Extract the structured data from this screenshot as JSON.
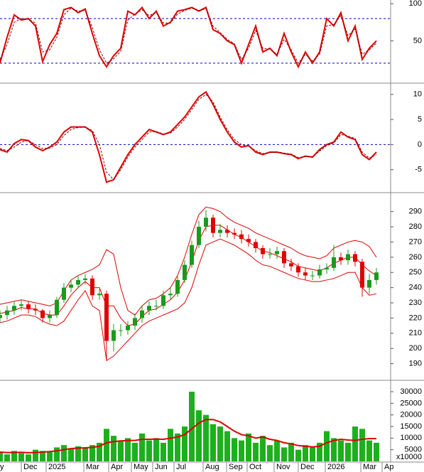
{
  "chart_data": [
    {
      "type": "line",
      "ylim": [
        -6,
        105
      ],
      "yticks": [
        50,
        100
      ],
      "hlines": [
        80,
        20
      ],
      "series": [
        {
          "color": "#e00000",
          "width": 2,
          "dash": false,
          "values": [
            20,
            55,
            85,
            78,
            80,
            70,
            22,
            45,
            60,
            92,
            95,
            88,
            93,
            60,
            30,
            15,
            30,
            40,
            90,
            85,
            95,
            80,
            90,
            70,
            75,
            90,
            92,
            95,
            90,
            95,
            65,
            60,
            50,
            45,
            20,
            45,
            70,
            35,
            40,
            30,
            60,
            35,
            15,
            35,
            20,
            35,
            80,
            70,
            88,
            50,
            70,
            25,
            40,
            50
          ]
        },
        {
          "color": "#800000",
          "width": 1,
          "dash": true,
          "values": [
            25,
            45,
            75,
            80,
            79,
            74,
            35,
            38,
            55,
            85,
            94,
            90,
            91,
            68,
            38,
            20,
            26,
            36,
            78,
            86,
            92,
            84,
            88,
            74,
            74,
            86,
            91,
            94,
            91,
            93,
            70,
            61,
            52,
            46,
            25,
            40,
            64,
            40,
            39,
            32,
            52,
            38,
            20,
            32,
            23,
            32,
            70,
            72,
            84,
            57,
            66,
            32,
            38,
            47
          ]
        }
      ]
    },
    {
      "type": "line",
      "ylim": [
        -9.3,
        12.1
      ],
      "yticks": [
        -5,
        0,
        5,
        10
      ],
      "hlines": [
        0
      ],
      "series": [
        {
          "color": "#e00000",
          "width": 2,
          "dash": false,
          "values": [
            -1,
            -1.5,
            0.2,
            1,
            0.8,
            -0.5,
            -1.2,
            -0.5,
            0.5,
            2.5,
            3.5,
            3.5,
            3.5,
            2.5,
            -2,
            -7.5,
            -7,
            -4.5,
            -2,
            0,
            1.5,
            3,
            2.5,
            2,
            2.5,
            4,
            5.5,
            7.5,
            9.5,
            10.5,
            8,
            5,
            2.5,
            0.5,
            -0.5,
            -0.2,
            -1.5,
            -2,
            -1.5,
            -1.5,
            -1.8,
            -2,
            -2.8,
            -2.3,
            -2.5,
            -1,
            0,
            0.5,
            2.5,
            1.5,
            1,
            -2,
            -3,
            -1.5
          ]
        },
        {
          "color": "#800000",
          "width": 1,
          "dash": true,
          "values": [
            -0.8,
            -1.2,
            -0.5,
            0.5,
            0.8,
            0,
            -0.8,
            -0.7,
            0,
            1.8,
            3,
            3.4,
            3.5,
            2.8,
            0,
            -5.5,
            -7,
            -5,
            -2.5,
            -0.5,
            1,
            2.5,
            2.6,
            2.1,
            2.3,
            3.5,
            5,
            7,
            9,
            10,
            8.5,
            5.5,
            3,
            1,
            0,
            -0.3,
            -1.2,
            -1.8,
            -1.6,
            -1.5,
            -1.7,
            -1.9,
            -2.6,
            -2.4,
            -2.5,
            -1.3,
            -0.2,
            0.3,
            2,
            1.7,
            1.2,
            -1.5,
            -2.7,
            -2
          ]
        }
      ]
    },
    {
      "type": "candlestick",
      "ylim": [
        180,
        302
      ],
      "yticks": [
        190,
        200,
        210,
        220,
        230,
        240,
        250,
        260,
        270,
        280,
        290
      ],
      "up_color": "#1a9a1a",
      "down_color": "#e00000",
      "open": [
        220,
        222,
        225,
        228,
        229,
        226,
        225,
        220,
        222,
        232,
        240,
        242,
        245,
        246,
        235,
        236,
        205,
        212,
        212,
        215,
        220,
        225,
        228,
        228,
        235,
        236,
        245,
        255,
        268,
        280,
        286,
        276,
        278,
        276,
        275,
        272,
        270,
        266,
        262,
        262,
        264,
        256,
        254,
        250,
        248,
        248,
        252,
        253,
        260,
        258,
        262,
        257,
        240,
        245
      ],
      "close": [
        222,
        225,
        228,
        229,
        226,
        225,
        220,
        222,
        232,
        240,
        242,
        245,
        246,
        235,
        236,
        205,
        212,
        212,
        215,
        220,
        225,
        228,
        228,
        235,
        236,
        245,
        255,
        268,
        280,
        286,
        276,
        278,
        276,
        275,
        272,
        270,
        266,
        262,
        262,
        264,
        256,
        254,
        250,
        248,
        248,
        252,
        253,
        260,
        258,
        262,
        257,
        240,
        245,
        250
      ],
      "high": [
        225,
        228,
        231,
        232,
        231,
        229,
        226,
        225,
        234,
        243,
        245,
        248,
        249,
        248,
        239,
        238,
        216,
        216,
        218,
        223,
        228,
        231,
        232,
        238,
        240,
        248,
        258,
        271,
        284,
        291,
        288,
        282,
        281,
        279,
        278,
        275,
        272,
        268,
        266,
        267,
        266,
        259,
        256,
        253,
        251,
        255,
        256,
        268,
        263,
        265,
        264,
        259,
        249,
        253
      ],
      "low": [
        217,
        219,
        222,
        225,
        223,
        222,
        217,
        217,
        220,
        230,
        237,
        240,
        242,
        232,
        232,
        192,
        198,
        208,
        209,
        212,
        217,
        222,
        225,
        226,
        232,
        234,
        243,
        253,
        266,
        277,
        273,
        273,
        273,
        272,
        269,
        267,
        263,
        259,
        259,
        259,
        253,
        251,
        247,
        245,
        245,
        246,
        249,
        251,
        255,
        255,
        254,
        234,
        236,
        242
      ],
      "series": [
        {
          "color": "#e00000",
          "width": 1,
          "dash": false,
          "values": [
            229,
            230,
            231,
            232,
            231,
            230,
            229,
            228,
            230,
            238,
            245,
            248,
            250,
            252,
            255,
            265,
            262,
            240,
            225,
            222,
            228,
            232,
            233,
            236,
            240,
            248,
            260,
            275,
            288,
            293,
            292,
            290,
            286,
            283,
            281,
            279,
            276,
            274,
            272,
            270,
            268,
            266,
            263,
            261,
            260,
            259,
            261,
            266,
            268,
            270,
            271,
            270,
            267,
            260
          ]
        },
        {
          "color": "#e00000",
          "width": 1,
          "dash": false,
          "values": [
            223,
            224,
            225,
            227,
            226,
            226,
            223,
            222,
            222,
            228,
            235,
            240,
            244,
            240,
            240,
            228,
            228,
            220,
            215,
            216,
            221,
            225,
            226,
            229,
            232,
            237,
            245,
            257,
            271,
            280,
            281,
            281,
            278,
            275,
            273,
            270,
            267,
            264,
            263,
            261,
            259,
            257,
            254,
            253,
            252,
            251,
            253,
            256,
            258,
            260,
            260,
            255,
            251,
            248
          ]
        },
        {
          "color": "#e00000",
          "width": 1,
          "dash": false,
          "values": [
            217,
            218,
            220,
            222,
            222,
            221,
            218,
            216,
            215,
            218,
            225,
            232,
            238,
            228,
            225,
            192,
            195,
            200,
            205,
            210,
            215,
            218,
            220,
            222,
            224,
            226,
            230,
            240,
            255,
            268,
            270,
            272,
            270,
            268,
            265,
            262,
            258,
            255,
            254,
            252,
            250,
            248,
            246,
            245,
            244,
            244,
            245,
            246,
            248,
            250,
            250,
            240,
            235,
            236
          ]
        }
      ]
    },
    {
      "type": "bar",
      "ylim": [
        0,
        34600
      ],
      "yticks": [
        5000,
        10000,
        15000,
        20000,
        25000,
        30000
      ],
      "color": "#1db01d",
      "annotation": "x10000",
      "x": [
        0,
        1,
        2,
        3,
        4,
        5,
        6,
        7,
        8,
        9,
        10,
        11,
        12,
        13,
        14,
        15,
        16,
        17,
        18,
        19,
        20,
        21,
        22,
        23,
        24,
        25,
        26,
        27,
        28,
        29,
        30,
        31,
        32,
        33,
        34,
        35,
        36,
        37,
        38,
        39,
        40,
        41,
        42,
        43,
        44,
        45,
        46,
        47,
        48,
        49,
        50,
        51,
        52,
        53
      ],
      "xlim": [
        0,
        55
      ],
      "xticks": [
        {
          "value": -0.3,
          "label": "y"
        },
        {
          "value": 3.0,
          "label": "Dec"
        },
        {
          "value": 6.5,
          "label": "2025"
        },
        {
          "value": 11.8,
          "label": "Mar"
        },
        {
          "value": 15.3,
          "label": "Apr"
        },
        {
          "value": 18.5,
          "label": "May"
        },
        {
          "value": 21.5,
          "label": "Jun"
        },
        {
          "value": 24.5,
          "label": "Jul"
        },
        {
          "value": 28.6,
          "label": "Aug"
        },
        {
          "value": 31.9,
          "label": "Sep"
        },
        {
          "value": 34.8,
          "label": "Oct"
        },
        {
          "value": 38.6,
          "label": "Nov"
        },
        {
          "value": 42.0,
          "label": "Dec"
        },
        {
          "value": 45.8,
          "label": "2026"
        },
        {
          "value": 50.8,
          "label": "Mar"
        },
        {
          "value": 53.8,
          "label": "Ap"
        }
      ],
      "values": [
        4000,
        3000,
        4500,
        3500,
        3000,
        5000,
        4500,
        4000,
        6000,
        7000,
        5500,
        6500,
        6000,
        7000,
        8000,
        14000,
        11000,
        9000,
        10000,
        8000,
        12000,
        9000,
        10000,
        8000,
        14000,
        12000,
        15000,
        30000,
        22000,
        20000,
        16000,
        15000,
        13000,
        10000,
        9000,
        12000,
        8000,
        11000,
        7000,
        9000,
        6000,
        8000,
        5000,
        7000,
        6000,
        8000,
        13000,
        10000,
        9000,
        8000,
        15000,
        14000,
        9000,
        8000
      ],
      "series": [
        {
          "color": "#e00000",
          "width": 2,
          "dash": false,
          "values": [
            4000,
            3800,
            3800,
            3900,
            3700,
            3800,
            4000,
            4200,
            4500,
            5000,
            5500,
            5700,
            5800,
            6000,
            6500,
            8000,
            8500,
            8800,
            9000,
            9000,
            9500,
            9500,
            9600,
            9500,
            10000,
            10500,
            11500,
            14000,
            16500,
            18000,
            18000,
            17000,
            15000,
            13000,
            11500,
            11000,
            10000,
            10500,
            9500,
            9000,
            8000,
            7500,
            6800,
            6500,
            6200,
            6500,
            8000,
            9000,
            9500,
            9200,
            9000,
            9500,
            9800,
            9800
          ]
        }
      ]
    }
  ]
}
